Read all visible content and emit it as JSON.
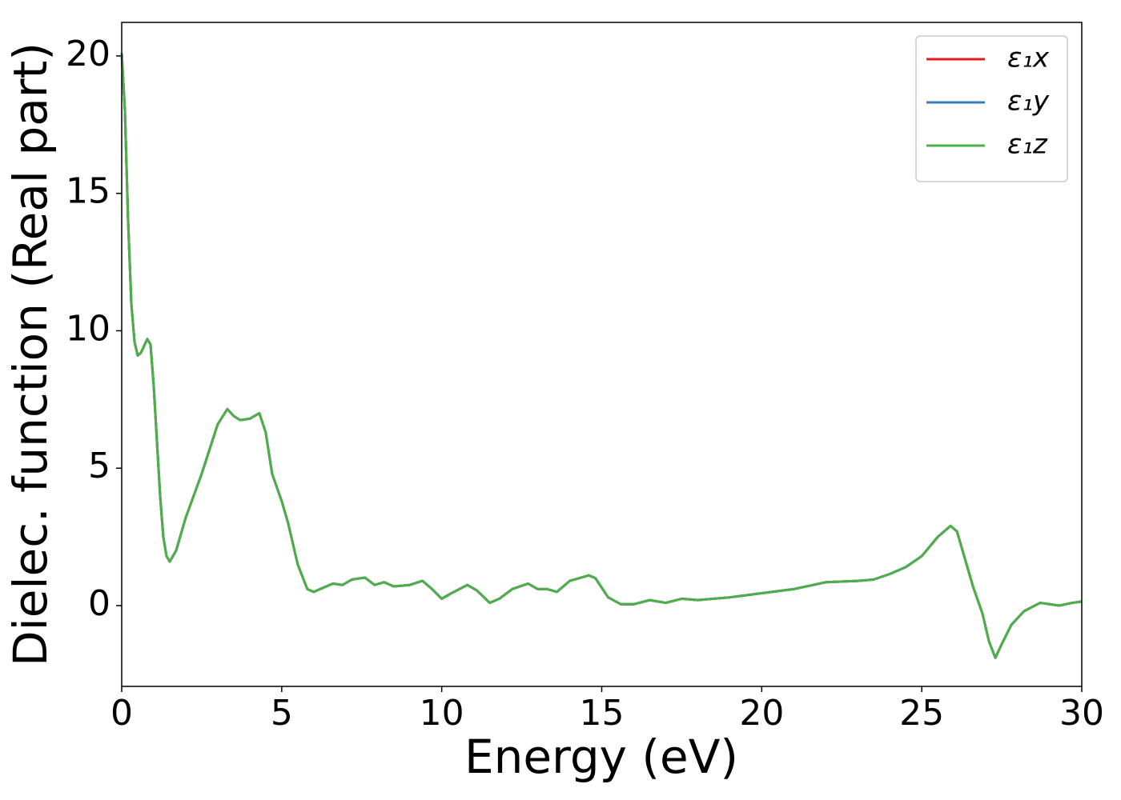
{
  "chart_data": {
    "type": "line",
    "xlabel": "Energy (eV)",
    "ylabel": "Dielec. function (Real part)",
    "x": [
      0,
      0.1,
      0.2,
      0.3,
      0.4,
      0.5,
      0.6,
      0.8,
      0.9,
      1.0,
      1.1,
      1.2,
      1.3,
      1.4,
      1.5,
      1.7,
      2.0,
      2.5,
      3.0,
      3.3,
      3.5,
      3.7,
      4.0,
      4.3,
      4.5,
      4.7,
      5.0,
      5.2,
      5.5,
      5.8,
      6.0,
      6.3,
      6.6,
      6.9,
      7.2,
      7.6,
      7.9,
      8.2,
      8.5,
      9.0,
      9.4,
      9.7,
      10.0,
      10.3,
      10.8,
      11.1,
      11.5,
      11.8,
      12.2,
      12.7,
      13.0,
      13.3,
      13.6,
      14.0,
      14.6,
      14.8,
      15.2,
      15.6,
      16.0,
      16.5,
      17.0,
      17.5,
      18.0,
      19.0,
      20.0,
      21.0,
      22.0,
      23.0,
      23.5,
      24.0,
      24.5,
      25.0,
      25.5,
      25.9,
      26.1,
      26.4,
      26.6,
      26.9,
      27.1,
      27.3,
      27.5,
      27.8,
      28.2,
      28.7,
      29.0,
      29.3,
      29.7,
      30.0
    ],
    "series": [
      {
        "name": "ε₁x",
        "color": "#e41a1c",
        "values": [
          20.1,
          18,
          14,
          11,
          9.6,
          9.1,
          9.2,
          9.7,
          9.5,
          8,
          6,
          4,
          2.5,
          1.8,
          1.6,
          2,
          3.2,
          4.8,
          6.6,
          7.15,
          6.9,
          6.75,
          6.8,
          7.0,
          6.3,
          4.8,
          3.8,
          3.0,
          1.5,
          0.6,
          0.5,
          0.65,
          0.8,
          0.75,
          0.95,
          1.02,
          0.75,
          0.85,
          0.7,
          0.75,
          0.9,
          0.6,
          0.25,
          0.45,
          0.75,
          0.55,
          0.1,
          0.25,
          0.6,
          0.8,
          0.6,
          0.6,
          0.5,
          0.9,
          1.1,
          1.0,
          0.3,
          0.05,
          0.05,
          0.2,
          0.1,
          0.25,
          0.2,
          0.3,
          0.45,
          0.6,
          0.85,
          0.9,
          0.95,
          1.15,
          1.4,
          1.8,
          2.5,
          2.9,
          2.7,
          1.5,
          0.7,
          -0.3,
          -1.3,
          -1.9,
          -1.4,
          -0.7,
          -0.2,
          0.1,
          0.05,
          0.0,
          0.1,
          0.15
        ]
      },
      {
        "name": "ε₁y",
        "color": "#377eb8",
        "values": [
          20.1,
          18,
          14,
          11,
          9.6,
          9.1,
          9.2,
          9.7,
          9.5,
          8,
          6,
          4,
          2.5,
          1.8,
          1.6,
          2,
          3.2,
          4.8,
          6.6,
          7.15,
          6.9,
          6.75,
          6.8,
          7.0,
          6.3,
          4.8,
          3.8,
          3.0,
          1.5,
          0.6,
          0.5,
          0.65,
          0.8,
          0.75,
          0.95,
          1.02,
          0.75,
          0.85,
          0.7,
          0.75,
          0.9,
          0.6,
          0.25,
          0.45,
          0.75,
          0.55,
          0.1,
          0.25,
          0.6,
          0.8,
          0.6,
          0.6,
          0.5,
          0.9,
          1.1,
          1.0,
          0.3,
          0.05,
          0.05,
          0.2,
          0.1,
          0.25,
          0.2,
          0.3,
          0.45,
          0.6,
          0.85,
          0.9,
          0.95,
          1.15,
          1.4,
          1.8,
          2.5,
          2.9,
          2.7,
          1.5,
          0.7,
          -0.3,
          -1.3,
          -1.9,
          -1.4,
          -0.7,
          -0.2,
          0.1,
          0.05,
          0.0,
          0.1,
          0.15
        ]
      },
      {
        "name": "ε₁z",
        "color": "#4daf4a",
        "values": [
          20.1,
          18,
          14,
          11,
          9.6,
          9.1,
          9.2,
          9.7,
          9.5,
          8,
          6,
          4,
          2.5,
          1.8,
          1.6,
          2,
          3.2,
          4.8,
          6.6,
          7.15,
          6.9,
          6.75,
          6.8,
          7.0,
          6.3,
          4.8,
          3.8,
          3.0,
          1.5,
          0.6,
          0.5,
          0.65,
          0.8,
          0.75,
          0.95,
          1.02,
          0.75,
          0.85,
          0.7,
          0.75,
          0.9,
          0.6,
          0.25,
          0.45,
          0.75,
          0.55,
          0.1,
          0.25,
          0.6,
          0.8,
          0.6,
          0.6,
          0.5,
          0.9,
          1.1,
          1.0,
          0.3,
          0.05,
          0.05,
          0.2,
          0.1,
          0.25,
          0.2,
          0.3,
          0.45,
          0.6,
          0.85,
          0.9,
          0.95,
          1.15,
          1.4,
          1.8,
          2.5,
          2.9,
          2.7,
          1.5,
          0.7,
          -0.3,
          -1.3,
          -1.9,
          -1.4,
          -0.7,
          -0.2,
          0.1,
          0.05,
          0.0,
          0.1,
          0.15
        ]
      }
    ],
    "xlim": [
      0,
      30
    ],
    "xticks": [
      0,
      5,
      10,
      15,
      20,
      25,
      30
    ],
    "ylim": [
      -2.94,
      21.22
    ],
    "yticks": [
      0,
      5,
      10,
      15,
      20
    ],
    "legend": "upper right",
    "grid": false
  }
}
